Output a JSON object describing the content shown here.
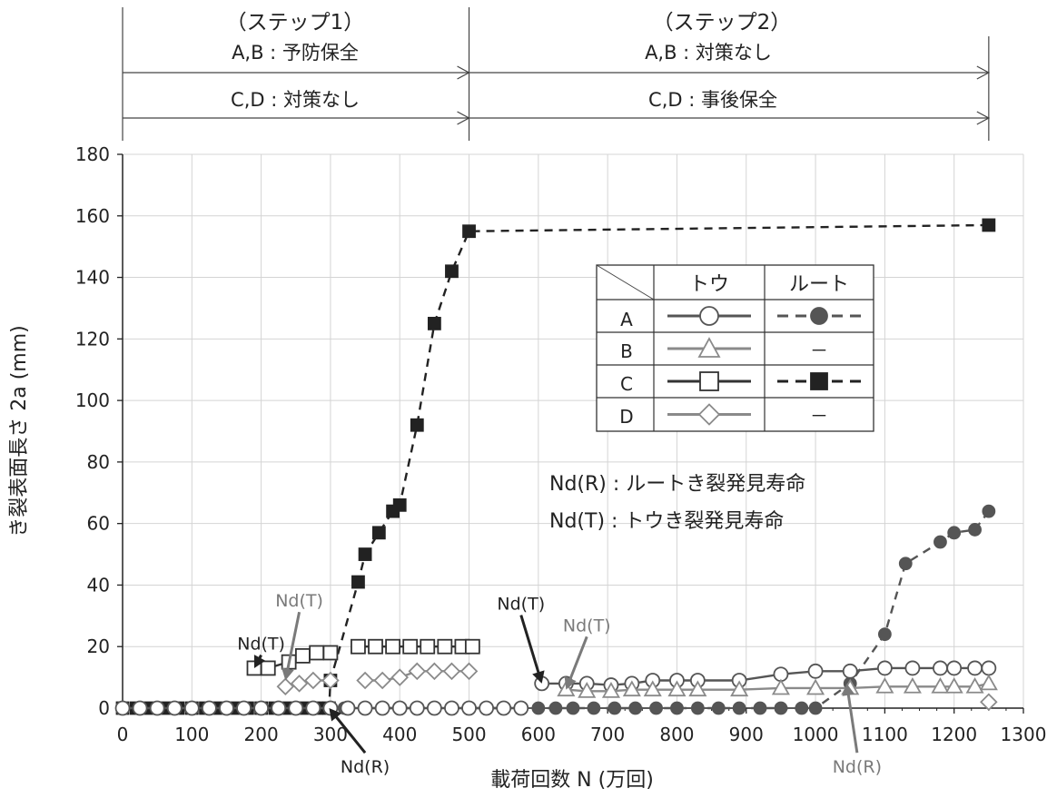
{
  "chart_data": {
    "type": "line",
    "xlabel": "載荷回数 N (万回)",
    "ylabel": "き裂表面長さ 2a (mm)",
    "xlim": [
      0,
      1300
    ],
    "ylim": [
      0,
      180
    ],
    "xticks": [
      0,
      100,
      200,
      300,
      400,
      500,
      600,
      700,
      800,
      900,
      1000,
      1100,
      1200,
      1300
    ],
    "yticks": [
      0,
      20,
      40,
      60,
      80,
      100,
      120,
      140,
      160,
      180
    ],
    "grid": true,
    "steps": {
      "step1": {
        "title": "（ステップ1）",
        "ab": "A,B : 予防保全",
        "cd": "C,D : 対策なし",
        "range": [
          0,
          500
        ]
      },
      "step2": {
        "title": "（ステップ2）",
        "ab": "A,B : 対策なし",
        "cd": "C,D : 事後保全",
        "range": [
          500,
          1250
        ]
      }
    },
    "legend": {
      "placement": "center-right",
      "col_toe": "トウ",
      "col_root": "ルート",
      "rows": [
        {
          "label": "A",
          "toe": "open-circle",
          "root": "filled-circle-dashed"
        },
        {
          "label": "B",
          "toe": "open-triangle",
          "root_text": "－"
        },
        {
          "label": "C",
          "toe": "open-square",
          "root": "filled-square-dashed"
        },
        {
          "label": "D",
          "toe": "open-diamond",
          "root_text": "－"
        }
      ]
    },
    "notes": {
      "root": "Nd(R) : ルートき裂発見寿命",
      "toe": "Nd(T) : トウき裂発見寿命"
    },
    "annotations": [
      {
        "text": "Nd(T)",
        "color": "#222222",
        "x": 200,
        "y": 19,
        "target": [
          190,
          13
        ]
      },
      {
        "text": "Nd(T)",
        "color": "#7a7a7a",
        "x": 255,
        "y": 33,
        "target": [
          235,
          9
        ]
      },
      {
        "text": "Nd(R)",
        "color": "#222222",
        "x": 350,
        "y": -21,
        "target": [
          298,
          0
        ]
      },
      {
        "text": "Nd(T)",
        "color": "#222222",
        "x": 575,
        "y": 32,
        "target": [
          605,
          8
        ]
      },
      {
        "text": "Nd(T)",
        "color": "#7a7a7a",
        "x": 670,
        "y": 25,
        "target": [
          640,
          6
        ]
      },
      {
        "text": "Nd(R)",
        "color": "#7a7a7a",
        "x": 1060,
        "y": -21,
        "target": [
          1045,
          8
        ]
      }
    ],
    "series": [
      {
        "name": "A トウ",
        "marker": "circle",
        "fill": "open",
        "line": "solid",
        "color": "#555555",
        "segments": [
          [
            [
              0,
              0
            ],
            [
              25,
              0
            ],
            [
              50,
              0
            ],
            [
              75,
              0
            ],
            [
              100,
              0
            ],
            [
              125,
              0
            ],
            [
              150,
              0
            ],
            [
              175,
              0
            ],
            [
              200,
              0
            ],
            [
              225,
              0
            ],
            [
              250,
              0
            ],
            [
              275,
              0
            ],
            [
              300,
              0
            ],
            [
              325,
              0
            ],
            [
              350,
              0
            ],
            [
              375,
              0
            ],
            [
              400,
              0
            ],
            [
              425,
              0
            ],
            [
              450,
              0
            ],
            [
              475,
              0
            ],
            [
              500,
              0
            ],
            [
              525,
              0
            ],
            [
              550,
              0
            ],
            [
              575,
              0
            ]
          ],
          [
            [
              605,
              8
            ],
            [
              640,
              8
            ],
            [
              670,
              8
            ],
            [
              705,
              7.5
            ],
            [
              735,
              8
            ],
            [
              765,
              9
            ],
            [
              800,
              9
            ],
            [
              830,
              9
            ],
            [
              890,
              9
            ],
            [
              950,
              11
            ],
            [
              1000,
              12
            ],
            [
              1050,
              12
            ],
            [
              1100,
              13
            ],
            [
              1140,
              13
            ],
            [
              1180,
              13
            ],
            [
              1200,
              13
            ],
            [
              1230,
              13
            ],
            [
              1250,
              13
            ]
          ]
        ]
      },
      {
        "name": "B トウ",
        "marker": "triangle",
        "fill": "open",
        "line": "solid",
        "color": "#8a8a8a",
        "segments": [
          [
            [
              640,
              6
            ],
            [
              670,
              5.5
            ],
            [
              705,
              5.5
            ],
            [
              735,
              6
            ],
            [
              765,
              6
            ],
            [
              800,
              6
            ],
            [
              830,
              6
            ],
            [
              890,
              6
            ],
            [
              950,
              6.5
            ],
            [
              1000,
              6.5
            ],
            [
              1050,
              6.5
            ],
            [
              1100,
              7
            ],
            [
              1140,
              7
            ],
            [
              1180,
              7
            ],
            [
              1200,
              7
            ],
            [
              1230,
              7
            ],
            [
              1250,
              8
            ]
          ]
        ]
      },
      {
        "name": "C トウ",
        "marker": "square",
        "fill": "open",
        "line": "solid",
        "color": "#333333",
        "segments": [
          [
            [
              190,
              13
            ],
            [
              210,
              13
            ],
            [
              240,
              15
            ],
            [
              260,
              17
            ],
            [
              280,
              18
            ],
            [
              300,
              18
            ]
          ],
          [
            [
              340,
              20
            ],
            [
              365,
              20
            ],
            [
              390,
              20
            ],
            [
              415,
              20
            ],
            [
              440,
              20
            ],
            [
              465,
              20
            ],
            [
              490,
              20
            ],
            [
              505,
              20
            ]
          ]
        ]
      },
      {
        "name": "D トウ",
        "marker": "diamond",
        "fill": "open",
        "line": "solid",
        "color": "#8a8a8a",
        "segments": [
          [
            [
              235,
              7
            ],
            [
              255,
              8
            ],
            [
              275,
              9
            ],
            [
              300,
              9
            ]
          ],
          [
            [
              350,
              9
            ],
            [
              375,
              9
            ],
            [
              400,
              10
            ],
            [
              425,
              12
            ],
            [
              450,
              12
            ],
            [
              475,
              12
            ],
            [
              500,
              12
            ]
          ],
          [
            [
              1250,
              2
            ]
          ]
        ]
      },
      {
        "name": "A ルート",
        "marker": "circle",
        "fill": "filled",
        "line": "dashed",
        "color": "#555555",
        "segments": [
          [
            [
              320,
              0
            ],
            [
              350,
              0
            ],
            [
              375,
              0
            ],
            [
              400,
              0
            ],
            [
              425,
              0
            ],
            [
              450,
              0
            ],
            [
              475,
              0
            ],
            [
              500,
              0
            ],
            [
              525,
              0
            ],
            [
              550,
              0
            ],
            [
              575,
              0
            ],
            [
              600,
              0
            ],
            [
              625,
              0
            ],
            [
              650,
              0
            ],
            [
              680,
              0
            ],
            [
              710,
              0
            ],
            [
              740,
              0
            ],
            [
              770,
              0
            ],
            [
              800,
              0
            ],
            [
              830,
              0
            ],
            [
              860,
              0
            ],
            [
              890,
              0
            ],
            [
              920,
              0
            ],
            [
              950,
              0
            ],
            [
              980,
              0
            ],
            [
              1000,
              0
            ],
            [
              1050,
              8
            ],
            [
              1100,
              24
            ],
            [
              1130,
              47
            ],
            [
              1180,
              54
            ],
            [
              1200,
              57
            ],
            [
              1230,
              58
            ],
            [
              1250,
              64
            ]
          ]
        ]
      },
      {
        "name": "C ルート",
        "marker": "square",
        "fill": "filled",
        "line": "dashed",
        "color": "#222222",
        "segments": [
          [
            [
              0,
              0
            ],
            [
              20,
              0
            ],
            [
              40,
              0
            ],
            [
              60,
              0
            ],
            [
              80,
              0
            ],
            [
              100,
              0
            ],
            [
              120,
              0
            ],
            [
              140,
              0
            ],
            [
              160,
              0
            ],
            [
              180,
              0
            ],
            [
              200,
              0
            ],
            [
              220,
              0
            ],
            [
              240,
              0
            ],
            [
              260,
              0
            ],
            [
              280,
              0
            ],
            [
              298,
              0
            ],
            [
              300,
              9
            ],
            [
              340,
              41
            ],
            [
              350,
              50
            ],
            [
              370,
              57
            ],
            [
              390,
              64
            ],
            [
              400,
              66
            ],
            [
              425,
              92
            ],
            [
              450,
              125
            ],
            [
              475,
              142
            ],
            [
              500,
              155
            ],
            [
              1250,
              157
            ]
          ]
        ]
      }
    ]
  }
}
